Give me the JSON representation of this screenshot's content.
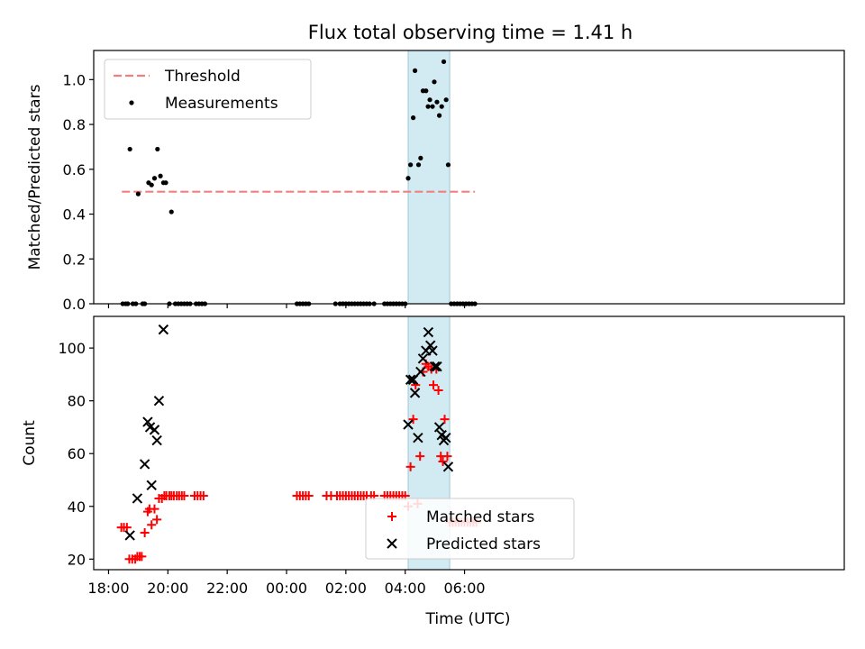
{
  "title": "Flux total observing time = 1.41 h",
  "chart_data": [
    {
      "type": "scatter",
      "panel": "top",
      "ylabel": "Matched/Predicted stars",
      "xlabel": "",
      "xlim": [
        -0.5,
        24.8
      ],
      "ylim": [
        0,
        1.13
      ],
      "yticks": [
        0.0,
        0.2,
        0.4,
        0.6,
        0.8,
        1.0
      ],
      "yticklabels": [
        "0.0",
        "0.2",
        "0.4",
        "0.6",
        "0.8",
        "1.0"
      ],
      "legend": {
        "position": "top-left",
        "threshold_label": "Threshold",
        "measurements_label": "Measurements"
      },
      "threshold": {
        "value": 0.5,
        "x_range": [
          0.45,
          12.35
        ],
        "color": "#f08080"
      },
      "observing_window": {
        "x_range": [
          10.1,
          11.5
        ],
        "color": "#add8e6"
      },
      "series": [
        {
          "name": "Measurements",
          "color": "#000000",
          "points": [
            [
              0.48,
              0
            ],
            [
              0.58,
              0
            ],
            [
              0.65,
              0
            ],
            [
              0.72,
              0.69
            ],
            [
              0.82,
              0
            ],
            [
              0.92,
              0
            ],
            [
              1.0,
              0.49
            ],
            [
              1.15,
              0
            ],
            [
              1.22,
              0
            ],
            [
              1.35,
              0.54
            ],
            [
              1.45,
              0.53
            ],
            [
              1.55,
              0.56
            ],
            [
              1.65,
              0.69
            ],
            [
              1.75,
              0.57
            ],
            [
              1.85,
              0.54
            ],
            [
              1.93,
              0.54
            ],
            [
              2.05,
              0
            ],
            [
              2.12,
              0.41
            ],
            [
              2.25,
              0
            ],
            [
              2.35,
              0
            ],
            [
              2.45,
              0
            ],
            [
              2.55,
              0
            ],
            [
              2.65,
              0
            ],
            [
              2.75,
              0
            ],
            [
              2.95,
              0
            ],
            [
              3.05,
              0
            ],
            [
              3.15,
              0
            ],
            [
              3.25,
              0
            ],
            [
              6.35,
              0
            ],
            [
              6.45,
              0
            ],
            [
              6.55,
              0
            ],
            [
              6.65,
              0
            ],
            [
              6.75,
              0
            ],
            [
              7.65,
              0
            ],
            [
              7.8,
              0
            ],
            [
              7.9,
              0
            ],
            [
              8.0,
              0
            ],
            [
              8.1,
              0
            ],
            [
              8.2,
              0
            ],
            [
              8.3,
              0
            ],
            [
              8.4,
              0
            ],
            [
              8.5,
              0
            ],
            [
              8.6,
              0
            ],
            [
              8.7,
              0
            ],
            [
              8.8,
              0
            ],
            [
              8.95,
              0
            ],
            [
              9.3,
              0
            ],
            [
              9.4,
              0
            ],
            [
              9.5,
              0
            ],
            [
              9.6,
              0
            ],
            [
              9.7,
              0
            ],
            [
              9.8,
              0
            ],
            [
              9.9,
              0
            ],
            [
              10.0,
              0
            ],
            [
              10.1,
              0.56
            ],
            [
              10.18,
              0.62
            ],
            [
              10.27,
              0.83
            ],
            [
              10.33,
              1.04
            ],
            [
              10.45,
              0.62
            ],
            [
              10.52,
              0.65
            ],
            [
              10.6,
              0.95
            ],
            [
              10.7,
              0.95
            ],
            [
              10.77,
              0.88
            ],
            [
              10.83,
              0.91
            ],
            [
              10.92,
              0.88
            ],
            [
              10.98,
              0.99
            ],
            [
              11.07,
              0.9
            ],
            [
              11.15,
              0.84
            ],
            [
              11.23,
              0.88
            ],
            [
              11.3,
              1.08
            ],
            [
              11.38,
              0.91
            ],
            [
              11.45,
              0.62
            ],
            [
              11.55,
              0
            ],
            [
              11.65,
              0
            ],
            [
              11.75,
              0
            ],
            [
              11.85,
              0
            ],
            [
              11.95,
              0
            ],
            [
              12.05,
              0
            ],
            [
              12.15,
              0
            ],
            [
              12.25,
              0
            ],
            [
              12.35,
              0
            ]
          ]
        }
      ]
    },
    {
      "type": "scatter",
      "panel": "bottom",
      "ylabel": "Count",
      "xlabel": "Time (UTC)",
      "xlim": [
        -0.5,
        24.8
      ],
      "ylim": [
        16,
        112
      ],
      "yticks": [
        20,
        40,
        60,
        80,
        100
      ],
      "yticklabels": [
        "20",
        "40",
        "60",
        "80",
        "100"
      ],
      "xticks": [
        0,
        2,
        4,
        6,
        8,
        10,
        12
      ],
      "xticklabels": [
        "18:00",
        "20:00",
        "22:00",
        "00:00",
        "02:00",
        "04:00",
        "06:00"
      ],
      "legend": {
        "position": "lower-center",
        "matched_label": "Matched stars",
        "predicted_label": "Predicted stars"
      },
      "observing_window": {
        "x_range": [
          10.1,
          11.5
        ],
        "color": "#add8e6"
      },
      "series": [
        {
          "name": "Matched stars",
          "marker": "plus",
          "color": "#ff0000",
          "points": [
            [
              0.43,
              32
            ],
            [
              0.52,
              32
            ],
            [
              0.62,
              32
            ],
            [
              0.7,
              20
            ],
            [
              0.8,
              20
            ],
            [
              0.9,
              20
            ],
            [
              0.97,
              21
            ],
            [
              1.05,
              21
            ],
            [
              1.12,
              21
            ],
            [
              1.22,
              30
            ],
            [
              1.32,
              38
            ],
            [
              1.38,
              39
            ],
            [
              1.45,
              33
            ],
            [
              1.55,
              39
            ],
            [
              1.63,
              35
            ],
            [
              1.7,
              43
            ],
            [
              1.8,
              43
            ],
            [
              1.88,
              44
            ],
            [
              1.95,
              44
            ],
            [
              2.05,
              44
            ],
            [
              2.12,
              44
            ],
            [
              2.2,
              44
            ],
            [
              2.3,
              44
            ],
            [
              2.38,
              44
            ],
            [
              2.47,
              44
            ],
            [
              2.55,
              44
            ],
            [
              2.9,
              44
            ],
            [
              3.0,
              44
            ],
            [
              3.1,
              44
            ],
            [
              3.2,
              44
            ],
            [
              6.35,
              44
            ],
            [
              6.45,
              44
            ],
            [
              6.55,
              44
            ],
            [
              6.65,
              44
            ],
            [
              6.75,
              44
            ],
            [
              7.35,
              44
            ],
            [
              7.5,
              44
            ],
            [
              7.7,
              44
            ],
            [
              7.8,
              44
            ],
            [
              7.9,
              44
            ],
            [
              8.0,
              44
            ],
            [
              8.1,
              44
            ],
            [
              8.2,
              44
            ],
            [
              8.3,
              44
            ],
            [
              8.4,
              44
            ],
            [
              8.5,
              44
            ],
            [
              8.6,
              44
            ],
            [
              8.7,
              44
            ],
            [
              8.85,
              44
            ],
            [
              8.95,
              44
            ],
            [
              9.3,
              44
            ],
            [
              9.4,
              44
            ],
            [
              9.5,
              44
            ],
            [
              9.6,
              44
            ],
            [
              9.7,
              44
            ],
            [
              9.8,
              44
            ],
            [
              9.9,
              44
            ],
            [
              10.0,
              44
            ],
            [
              10.1,
              40
            ],
            [
              10.18,
              55
            ],
            [
              10.27,
              73
            ],
            [
              10.35,
              86
            ],
            [
              10.42,
              41
            ],
            [
              10.5,
              59
            ],
            [
              10.6,
              91
            ],
            [
              10.7,
              94
            ],
            [
              10.78,
              93
            ],
            [
              10.88,
              92
            ],
            [
              10.95,
              86
            ],
            [
              11.05,
              92
            ],
            [
              11.12,
              84
            ],
            [
              11.2,
              59
            ],
            [
              11.27,
              57
            ],
            [
              11.33,
              73
            ],
            [
              11.42,
              59
            ],
            [
              11.5,
              34
            ],
            [
              11.6,
              34
            ],
            [
              11.7,
              34
            ],
            [
              11.8,
              34
            ],
            [
              11.9,
              34
            ],
            [
              12.0,
              34
            ],
            [
              12.1,
              34
            ],
            [
              12.2,
              34
            ],
            [
              12.3,
              34
            ],
            [
              12.4,
              34
            ]
          ]
        },
        {
          "name": "Predicted stars",
          "marker": "x",
          "color": "#000000",
          "points": [
            [
              0.72,
              29
            ],
            [
              0.97,
              43
            ],
            [
              1.22,
              56
            ],
            [
              1.32,
              72
            ],
            [
              1.4,
              70
            ],
            [
              1.45,
              48
            ],
            [
              1.55,
              69
            ],
            [
              1.63,
              65
            ],
            [
              1.7,
              80
            ],
            [
              1.85,
              107
            ],
            [
              10.1,
              71
            ],
            [
              10.18,
              88
            ],
            [
              10.27,
              88
            ],
            [
              10.33,
              83
            ],
            [
              10.43,
              66
            ],
            [
              10.52,
              91
            ],
            [
              10.6,
              96
            ],
            [
              10.7,
              99
            ],
            [
              10.78,
              106
            ],
            [
              10.85,
              101
            ],
            [
              10.92,
              99
            ],
            [
              11.0,
              93
            ],
            [
              11.07,
              93
            ],
            [
              11.15,
              70
            ],
            [
              11.23,
              67
            ],
            [
              11.3,
              65
            ],
            [
              11.37,
              66
            ],
            [
              11.45,
              55
            ]
          ]
        }
      ]
    }
  ]
}
